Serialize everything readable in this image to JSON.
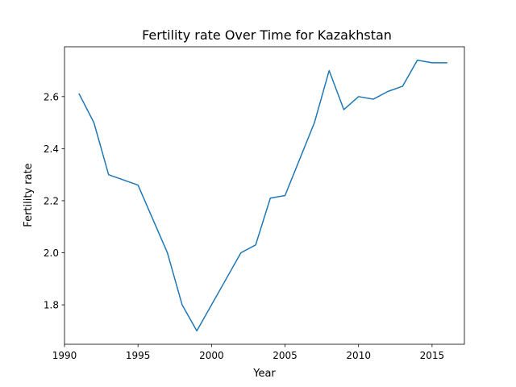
{
  "chart_data": {
    "type": "line",
    "title": "Fertility rate Over Time for Kazakhstan",
    "xlabel": "Year",
    "ylabel": "Fertility rate",
    "xlim": [
      1990,
      2017.2
    ],
    "ylim": [
      1.6485,
      2.7915
    ],
    "x_ticks": [
      1990,
      1995,
      2000,
      2005,
      2010,
      2015
    ],
    "y_ticks": [
      1.8,
      2.0,
      2.2,
      2.4,
      2.6
    ],
    "y_tick_decimals": 1,
    "grid": false,
    "series": [
      {
        "color": "#1f77b4",
        "x": [
          1991,
          1992,
          1993,
          1995,
          1996,
          1997,
          1998,
          1999,
          2000,
          2001,
          2002,
          2003,
          2004,
          2005,
          2006,
          2007,
          2008,
          2009,
          2010,
          2011,
          2012,
          2013,
          2014,
          2015,
          2016
        ],
        "y": [
          2.61,
          2.5,
          2.3,
          2.26,
          2.13,
          2.0,
          1.8,
          1.7,
          1.8,
          1.9,
          2.0,
          2.03,
          2.21,
          2.22,
          2.36,
          2.5,
          2.7,
          2.55,
          2.6,
          2.59,
          2.62,
          2.64,
          2.74,
          2.73,
          2.73
        ]
      }
    ]
  }
}
